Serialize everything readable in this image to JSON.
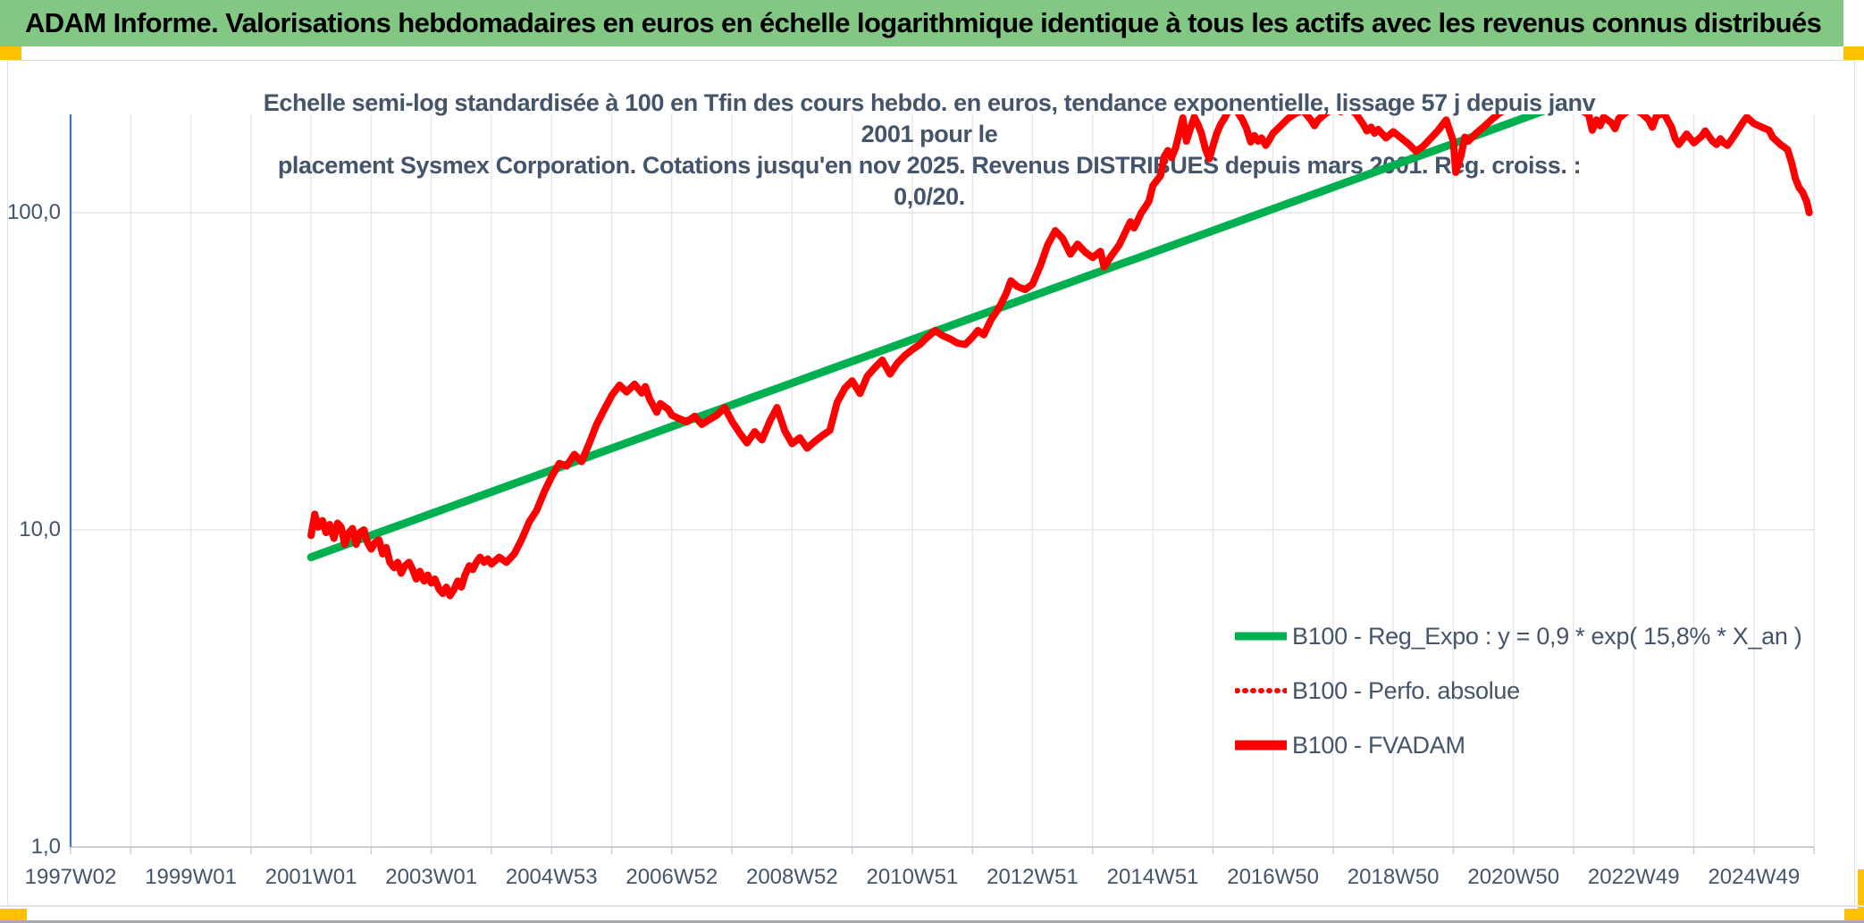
{
  "header": {
    "title": "ADAM Informe. Valorisations hebdomadaires en euros en échelle logarithmique identique à tous les actifs avec les revenus connus distribués",
    "bar_color": "#82C784",
    "accent_color": "#FFC000"
  },
  "chart_data": {
    "type": "line",
    "title_lines": [
      "Echelle semi-log standardisée à 100 en Tfin des cours hebdo. en euros, tendance exponentielle, lissage 57 j depuis janv 2001 pour le",
      "placement Sysmex Corporation. Cotations jusqu'en nov 2025. Revenus DISTRIBUES depuis mars 2001. Reg. croiss. : 0,0/20."
    ],
    "y_scale": "log",
    "ylim": [
      1,
      204
    ],
    "x_axis": {
      "start_year": 1997,
      "end_year": 2026,
      "label_step_years": 2
    },
    "x_tick_labels": [
      "1997W02",
      "1999W01",
      "2001W01",
      "2003W01",
      "2004W53",
      "2006W52",
      "2008W52",
      "2010W51",
      "2012W51",
      "2014W51",
      "2016W50",
      "2018W50",
      "2020W50",
      "2022W49",
      "2024W49"
    ],
    "y_ticks": [
      {
        "value": 100,
        "label": "100,0"
      },
      {
        "value": 10,
        "label": "10,0"
      },
      {
        "value": 1,
        "label": "1,0"
      }
    ],
    "colors": {
      "axis_y": "#4472C4",
      "axis_x": "#c3c8cf",
      "grid": "#e4e7ec",
      "trend": "#00B050",
      "price": "#FF0000"
    },
    "legend": [
      {
        "label": "B100 - Reg_Expo : y = 0,9 * exp( 15,8% *  X_an )",
        "color": "#00B050",
        "style": "solid"
      },
      {
        "label": "B100 - Perfo. absolue",
        "color": "#FF0000",
        "style": "dotted"
      },
      {
        "label": "B100 - FVADAM",
        "color": "#FF0000",
        "style": "solid"
      }
    ],
    "series": [
      {
        "name": "B100 - Reg_Expo",
        "type": "exp_trend",
        "color": "#00B050",
        "style": "solid",
        "t_start": 2001.0,
        "v_start": 8.2,
        "annual_growth": 0.158,
        "t_end": 2025.92
      },
      {
        "name": "B100 - Perfo. absolue",
        "type": "line",
        "color": "#FF0000",
        "style": "dotted",
        "points_ref": "B100 - FVADAM"
      },
      {
        "name": "B100 - FVADAM",
        "type": "line",
        "color": "#FF0000",
        "style": "solid",
        "points": [
          [
            2001.0,
            9.6
          ],
          [
            2001.06,
            11.2
          ],
          [
            2001.12,
            10.2
          ],
          [
            2001.19,
            10.7
          ],
          [
            2001.25,
            9.8
          ],
          [
            2001.31,
            10.4
          ],
          [
            2001.38,
            9.4
          ],
          [
            2001.44,
            10.5
          ],
          [
            2001.5,
            10.2
          ],
          [
            2001.56,
            9.0
          ],
          [
            2001.63,
            9.8
          ],
          [
            2001.69,
            10.1
          ],
          [
            2001.75,
            9.0
          ],
          [
            2001.81,
            9.8
          ],
          [
            2001.88,
            10.0
          ],
          [
            2001.94,
            9.1
          ],
          [
            2002.0,
            8.7
          ],
          [
            2002.06,
            9.1
          ],
          [
            2002.13,
            9.3
          ],
          [
            2002.19,
            8.4
          ],
          [
            2002.25,
            8.8
          ],
          [
            2002.31,
            7.9
          ],
          [
            2002.38,
            7.6
          ],
          [
            2002.44,
            7.9
          ],
          [
            2002.5,
            7.3
          ],
          [
            2002.56,
            7.7
          ],
          [
            2002.63,
            7.9
          ],
          [
            2002.69,
            7.5
          ],
          [
            2002.75,
            7.0
          ],
          [
            2002.81,
            7.4
          ],
          [
            2002.88,
            6.9
          ],
          [
            2002.94,
            7.2
          ],
          [
            2003.0,
            6.8
          ],
          [
            2003.06,
            7.0
          ],
          [
            2003.13,
            6.5
          ],
          [
            2003.19,
            6.3
          ],
          [
            2003.25,
            6.6
          ],
          [
            2003.31,
            6.2
          ],
          [
            2003.38,
            6.5
          ],
          [
            2003.44,
            6.9
          ],
          [
            2003.5,
            6.6
          ],
          [
            2003.56,
            7.2
          ],
          [
            2003.63,
            7.7
          ],
          [
            2003.69,
            7.5
          ],
          [
            2003.75,
            7.9
          ],
          [
            2003.81,
            8.2
          ],
          [
            2003.88,
            7.9
          ],
          [
            2003.94,
            8.1
          ],
          [
            2004.0,
            7.8
          ],
          [
            2004.13,
            8.2
          ],
          [
            2004.25,
            7.9
          ],
          [
            2004.38,
            8.4
          ],
          [
            2004.5,
            9.3
          ],
          [
            2004.63,
            10.6
          ],
          [
            2004.75,
            11.5
          ],
          [
            2004.88,
            13.2
          ],
          [
            2005.0,
            14.7
          ],
          [
            2005.13,
            16.2
          ],
          [
            2005.25,
            15.9
          ],
          [
            2005.38,
            17.3
          ],
          [
            2005.5,
            16.4
          ],
          [
            2005.63,
            18.8
          ],
          [
            2005.75,
            21.5
          ],
          [
            2005.88,
            24.0
          ],
          [
            2006.0,
            26.5
          ],
          [
            2006.13,
            28.6
          ],
          [
            2006.25,
            27.2
          ],
          [
            2006.38,
            28.8
          ],
          [
            2006.5,
            27.0
          ],
          [
            2006.56,
            28.3
          ],
          [
            2006.63,
            25.9
          ],
          [
            2006.75,
            23.5
          ],
          [
            2006.81,
            25.0
          ],
          [
            2006.94,
            24.0
          ],
          [
            2007.0,
            23.0
          ],
          [
            2007.13,
            22.4
          ],
          [
            2007.25,
            21.9
          ],
          [
            2007.38,
            22.8
          ],
          [
            2007.5,
            21.5
          ],
          [
            2007.63,
            22.3
          ],
          [
            2007.75,
            23.0
          ],
          [
            2007.88,
            24.3
          ],
          [
            2008.0,
            22.0
          ],
          [
            2008.13,
            20.2
          ],
          [
            2008.25,
            18.8
          ],
          [
            2008.38,
            20.4
          ],
          [
            2008.5,
            19.2
          ],
          [
            2008.63,
            22.0
          ],
          [
            2008.75,
            24.3
          ],
          [
            2008.88,
            20.5
          ],
          [
            2009.0,
            18.7
          ],
          [
            2009.13,
            19.5
          ],
          [
            2009.25,
            18.1
          ],
          [
            2009.38,
            19.0
          ],
          [
            2009.5,
            19.8
          ],
          [
            2009.63,
            20.6
          ],
          [
            2009.75,
            25.2
          ],
          [
            2009.88,
            28.0
          ],
          [
            2010.0,
            29.5
          ],
          [
            2010.13,
            26.9
          ],
          [
            2010.25,
            30.5
          ],
          [
            2010.38,
            32.5
          ],
          [
            2010.5,
            34.3
          ],
          [
            2010.63,
            31.0
          ],
          [
            2010.75,
            33.5
          ],
          [
            2010.88,
            35.5
          ],
          [
            2011.0,
            37.0
          ],
          [
            2011.13,
            38.5
          ],
          [
            2011.25,
            40.5
          ],
          [
            2011.38,
            42.5
          ],
          [
            2011.5,
            41.0
          ],
          [
            2011.63,
            40.0
          ],
          [
            2011.75,
            38.8
          ],
          [
            2011.88,
            38.4
          ],
          [
            2012.0,
            40.5
          ],
          [
            2012.09,
            42.5
          ],
          [
            2012.19,
            41.2
          ],
          [
            2012.31,
            46.0
          ],
          [
            2012.44,
            50.0
          ],
          [
            2012.56,
            55.5
          ],
          [
            2012.64,
            61.0
          ],
          [
            2012.75,
            58.5
          ],
          [
            2012.88,
            57.2
          ],
          [
            2013.0,
            59.5
          ],
          [
            2013.13,
            68.0
          ],
          [
            2013.25,
            79.0
          ],
          [
            2013.38,
            87.8
          ],
          [
            2013.5,
            83.0
          ],
          [
            2013.63,
            74.0
          ],
          [
            2013.75,
            79.6
          ],
          [
            2013.88,
            75.0
          ],
          [
            2014.0,
            72.2
          ],
          [
            2014.13,
            75.5
          ],
          [
            2014.19,
            67.4
          ],
          [
            2014.31,
            73.0
          ],
          [
            2014.44,
            79.0
          ],
          [
            2014.56,
            88.0
          ],
          [
            2014.63,
            93.6
          ],
          [
            2014.69,
            89.5
          ],
          [
            2014.81,
            100.0
          ],
          [
            2014.88,
            104.6
          ],
          [
            2014.94,
            109.0
          ],
          [
            2015.0,
            121.5
          ],
          [
            2015.13,
            131.0
          ],
          [
            2015.19,
            150.0
          ],
          [
            2015.25,
            157.0
          ],
          [
            2015.31,
            149.0
          ],
          [
            2015.38,
            160.0
          ],
          [
            2015.44,
            178.0
          ],
          [
            2015.5,
            199.0
          ],
          [
            2015.56,
            168.0
          ],
          [
            2015.63,
            185.0
          ],
          [
            2015.69,
            200.0
          ],
          [
            2015.75,
            190.0
          ],
          [
            2015.81,
            178.0
          ],
          [
            2015.88,
            158.0
          ],
          [
            2015.94,
            148.0
          ],
          [
            2016.0,
            162.0
          ],
          [
            2016.06,
            177.0
          ],
          [
            2016.13,
            190.0
          ],
          [
            2016.19,
            198.0
          ],
          [
            2016.25,
            208.0
          ],
          [
            2016.38,
            212.0
          ],
          [
            2016.5,
            195.0
          ],
          [
            2016.56,
            184.0
          ],
          [
            2016.63,
            167.0
          ],
          [
            2016.69,
            175.0
          ],
          [
            2016.75,
            168.0
          ],
          [
            2016.81,
            172.0
          ],
          [
            2016.88,
            163.0
          ],
          [
            2016.94,
            170.0
          ],
          [
            2017.0,
            178.0
          ],
          [
            2017.13,
            188.0
          ],
          [
            2017.25,
            198.0
          ],
          [
            2017.38,
            206.0
          ],
          [
            2017.5,
            210.0
          ],
          [
            2017.63,
            196.0
          ],
          [
            2017.69,
            188.0
          ],
          [
            2017.75,
            196.0
          ],
          [
            2017.88,
            206.0
          ],
          [
            2018.0,
            212.0
          ],
          [
            2018.13,
            208.0
          ],
          [
            2018.25,
            214.0
          ],
          [
            2018.38,
            205.0
          ],
          [
            2018.5,
            190.0
          ],
          [
            2018.56,
            181.0
          ],
          [
            2018.63,
            186.0
          ],
          [
            2018.69,
            178.0
          ],
          [
            2018.75,
            183.0
          ],
          [
            2018.88,
            172.0
          ],
          [
            2019.0,
            180.0
          ],
          [
            2019.13,
            172.0
          ],
          [
            2019.25,
            165.0
          ],
          [
            2019.38,
            156.0
          ],
          [
            2019.5,
            162.0
          ],
          [
            2019.63,
            172.0
          ],
          [
            2019.75,
            182.0
          ],
          [
            2019.88,
            196.0
          ],
          [
            2020.0,
            168.0
          ],
          [
            2020.04,
            134.0
          ],
          [
            2020.13,
            152.0
          ],
          [
            2020.19,
            173.0
          ],
          [
            2020.25,
            168.0
          ],
          [
            2020.38,
            178.0
          ],
          [
            2020.5,
            186.0
          ],
          [
            2020.63,
            196.0
          ],
          [
            2020.75,
            205.0
          ],
          [
            2020.88,
            212.0
          ],
          [
            2021.0,
            216.0
          ],
          [
            2021.25,
            220.0
          ],
          [
            2021.5,
            218.0
          ],
          [
            2021.75,
            222.0
          ],
          [
            2022.0,
            216.0
          ],
          [
            2022.13,
            210.0
          ],
          [
            2022.25,
            204.0
          ],
          [
            2022.31,
            182.0
          ],
          [
            2022.38,
            196.0
          ],
          [
            2022.44,
            188.0
          ],
          [
            2022.5,
            200.0
          ],
          [
            2022.63,
            192.0
          ],
          [
            2022.69,
            184.0
          ],
          [
            2022.75,
            198.0
          ],
          [
            2022.88,
            208.0
          ],
          [
            2023.0,
            212.0
          ],
          [
            2023.13,
            206.0
          ],
          [
            2023.25,
            196.0
          ],
          [
            2023.31,
            186.0
          ],
          [
            2023.38,
            202.0
          ],
          [
            2023.5,
            206.0
          ],
          [
            2023.63,
            186.0
          ],
          [
            2023.69,
            171.0
          ],
          [
            2023.75,
            164.0
          ],
          [
            2023.88,
            177.0
          ],
          [
            2024.0,
            166.0
          ],
          [
            2024.13,
            174.0
          ],
          [
            2024.19,
            181.0
          ],
          [
            2024.31,
            168.0
          ],
          [
            2024.38,
            164.0
          ],
          [
            2024.44,
            171.0
          ],
          [
            2024.5,
            166.0
          ],
          [
            2024.56,
            163.0
          ],
          [
            2024.63,
            170.0
          ],
          [
            2024.69,
            177.0
          ],
          [
            2024.81,
            192.0
          ],
          [
            2024.88,
            200.0
          ],
          [
            2025.0,
            191.0
          ],
          [
            2025.13,
            186.0
          ],
          [
            2025.25,
            182.0
          ],
          [
            2025.31,
            173.0
          ],
          [
            2025.44,
            164.0
          ],
          [
            2025.5,
            161.0
          ],
          [
            2025.56,
            158.0
          ],
          [
            2025.63,
            143.0
          ],
          [
            2025.69,
            128.0
          ],
          [
            2025.75,
            120.0
          ],
          [
            2025.81,
            116.0
          ],
          [
            2025.88,
            108.0
          ],
          [
            2025.92,
            100.0
          ]
        ]
      }
    ]
  }
}
